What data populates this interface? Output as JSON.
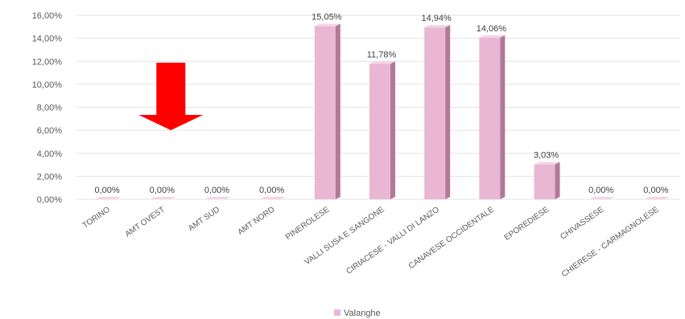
{
  "chart_data": {
    "type": "bar",
    "categories": [
      "TORINO",
      "AMT OVEST",
      "AMT SUD",
      "AMT NORD",
      "PINEROLESE",
      "VALLI SUSA E SANGONE",
      "CIRIACESE - VALLI DI LANZO",
      "CANAVESE OCCIDENTALE",
      "EPOREDIESE",
      "CHIVASSESE",
      "CHIERESE - CARMAGNOLESE"
    ],
    "series": [
      {
        "name": "Valanghe",
        "values": [
          0.0,
          0.0,
          0.0,
          0.0,
          15.05,
          11.78,
          14.94,
          14.06,
          3.03,
          0.0,
          0.0
        ]
      }
    ],
    "data_labels": [
      "0,00%",
      "0,00%",
      "0,00%",
      "0,00%",
      "15,05%",
      "11,78%",
      "14,94%",
      "14,06%",
      "3,03%",
      "0,00%",
      "0,00%"
    ],
    "y_ticks": [
      "0,00%",
      "2,00%",
      "4,00%",
      "6,00%",
      "8,00%",
      "10,00%",
      "12,00%",
      "14,00%",
      "16,00%"
    ],
    "ylim": [
      0,
      16
    ],
    "grid": true,
    "legend_position": "bottom",
    "colors": {
      "bar_front": "#e9b7d3",
      "bar_side": "#b27a98",
      "bar_top": "#f4d4e6",
      "arrow": "#ff0000"
    }
  },
  "annotation": {
    "type": "arrow-down",
    "icon": "red-down-arrow",
    "target_category": "AMT OVEST"
  }
}
